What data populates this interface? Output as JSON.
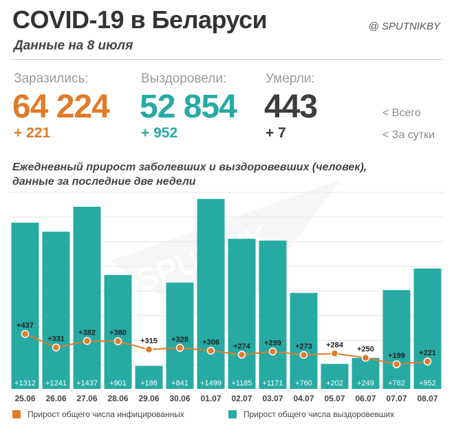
{
  "header": {
    "title": "COVID-19 в Беларуси",
    "subtitle": "Данные на 8 июля",
    "brand": "@ SPUTNIKBY"
  },
  "stats": {
    "infected": {
      "label": "Заразились:",
      "total": "64 224",
      "daily": "+ 221"
    },
    "recovered": {
      "label": "Выздоровели:",
      "total": "52 854",
      "daily": "+ 952"
    },
    "deaths": {
      "label": "Умерли:",
      "total": "443",
      "daily": "+ 7"
    },
    "legend_total": "<  Всего",
    "legend_daily": "<  За сутки"
  },
  "colors": {
    "infected": "#e07b29",
    "recovered": "#27aaa4",
    "deaths": "#3d3d3d",
    "grid": "#e4e4e4"
  },
  "watermark": "SPUTNIK",
  "chart_data": {
    "type": "bar",
    "title": "Ежедневный прирост заболевших и выздоровевших (человек),\nданные за последние две недели",
    "categories": [
      "25.06",
      "26.06",
      "27.06",
      "28.06",
      "29.06",
      "30.06",
      "01.07",
      "02.07",
      "03.07",
      "04.07",
      "05.07",
      "06.07",
      "07.07",
      "08.07"
    ],
    "series": [
      {
        "name": "Прирост общего числа выздоровевших",
        "kind": "bar",
        "color": "#27aaa4",
        "values": [
          1312,
          1241,
          1437,
          901,
          186,
          841,
          1499,
          1185,
          1171,
          760,
          202,
          249,
          782,
          952
        ],
        "labels": [
          "+1312",
          "+1241",
          "+1437",
          "+901",
          "+186",
          "+841",
          "+1499",
          "+1185",
          "+1171",
          "+760",
          "+202",
          "+249",
          "+782",
          "+952"
        ]
      },
      {
        "name": "Прирост общего числа инфицированных",
        "kind": "line",
        "color": "#e07b29",
        "values": [
          437,
          331,
          382,
          380,
          315,
          328,
          306,
          274,
          299,
          273,
          284,
          250,
          199,
          221
        ],
        "labels": [
          "+437",
          "+331",
          "+382",
          "+380",
          "+315",
          "+328",
          "+306",
          "+274",
          "+299",
          "+273",
          "+284",
          "+250",
          "+199",
          "+221"
        ]
      }
    ],
    "ylim": [
      0,
      1550
    ],
    "grid": true,
    "legend": "bottom"
  }
}
